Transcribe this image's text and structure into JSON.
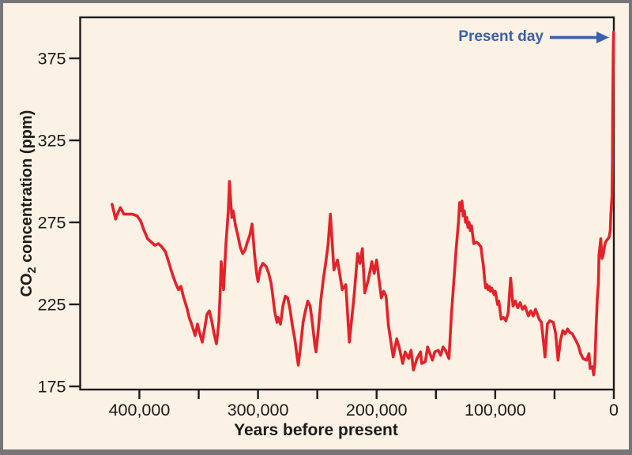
{
  "labels": {
    "y_axis": {
      "prefix": "CO",
      "sub": "2",
      "suffix": " concentration (ppm)"
    },
    "x_axis_title": "Years before present",
    "annotation": "Present day"
  },
  "chart_data": {
    "type": "line",
    "title": "",
    "xlabel": "Years before present",
    "ylabel": "CO2 concentration (ppm)",
    "x_direction": "reversed",
    "xlim_years": [
      450000,
      0
    ],
    "ylim_ppm": [
      175,
      400
    ],
    "grid": false,
    "legend": false,
    "y_ticks_ppm": [
      175,
      225,
      275,
      325,
      375
    ],
    "x_major_ticks": [
      {
        "years": 400000,
        "label": "400,000"
      },
      {
        "years": 300000,
        "label": "300,000"
      },
      {
        "years": 200000,
        "label": "200,000"
      },
      {
        "years": 100000,
        "label": "100,000"
      },
      {
        "years": 0,
        "label": "0"
      }
    ],
    "x_minor_ticks_years": [
      350000,
      250000,
      150000,
      50000
    ],
    "annotation": {
      "text": "Present day",
      "points_to_years": 0,
      "points_to_ppm": 391
    },
    "colors": {
      "background": "#FBF1E4",
      "frame": "#76757A",
      "axis": "#1B1B1B",
      "line": "#E3222A",
      "annotation": "#3A61A9"
    },
    "series": [
      {
        "name": "CO2 concentration",
        "points_years_ppm": [
          [
            423000,
            286
          ],
          [
            420000,
            277
          ],
          [
            418000,
            281
          ],
          [
            416000,
            284
          ],
          [
            413000,
            280
          ],
          [
            410000,
            280
          ],
          [
            406000,
            280
          ],
          [
            402000,
            279
          ],
          [
            399000,
            276
          ],
          [
            396000,
            270
          ],
          [
            393000,
            265
          ],
          [
            390000,
            263
          ],
          [
            387000,
            261
          ],
          [
            384000,
            262
          ],
          [
            381000,
            260
          ],
          [
            378000,
            257
          ],
          [
            375000,
            250
          ],
          [
            372000,
            243
          ],
          [
            369000,
            237
          ],
          [
            367000,
            234
          ],
          [
            365000,
            236
          ],
          [
            363000,
            230
          ],
          [
            360000,
            223
          ],
          [
            358000,
            217
          ],
          [
            356000,
            213
          ],
          [
            353000,
            206
          ],
          [
            351000,
            213
          ],
          [
            349000,
            207
          ],
          [
            347000,
            202
          ],
          [
            345000,
            210
          ],
          [
            343000,
            219
          ],
          [
            341000,
            221
          ],
          [
            339000,
            215
          ],
          [
            337000,
            207
          ],
          [
            335000,
            201
          ],
          [
            333000,
            214
          ],
          [
            332000,
            230
          ],
          [
            331000,
            251
          ],
          [
            330000,
            241
          ],
          [
            329000,
            234
          ],
          [
            328000,
            248
          ],
          [
            327000,
            262
          ],
          [
            325000,
            282
          ],
          [
            324000,
            300
          ],
          [
            323000,
            288
          ],
          [
            322000,
            278
          ],
          [
            321000,
            282
          ],
          [
            319000,
            273
          ],
          [
            317000,
            267
          ],
          [
            315000,
            260
          ],
          [
            313000,
            256
          ],
          [
            311000,
            258
          ],
          [
            309000,
            263
          ],
          [
            307000,
            267
          ],
          [
            305000,
            274
          ],
          [
            303000,
            256
          ],
          [
            301000,
            243
          ],
          [
            300000,
            239
          ],
          [
            298000,
            247
          ],
          [
            296000,
            250
          ],
          [
            293000,
            248
          ],
          [
            291000,
            244
          ],
          [
            289000,
            238
          ],
          [
            288000,
            233
          ],
          [
            286000,
            221
          ],
          [
            284000,
            214
          ],
          [
            283000,
            217
          ],
          [
            281000,
            213
          ],
          [
            279000,
            224
          ],
          [
            277000,
            230
          ],
          [
            275000,
            229
          ],
          [
            273000,
            222
          ],
          [
            271000,
            212
          ],
          [
            269000,
            204
          ],
          [
            267000,
            193
          ],
          [
            266000,
            188
          ],
          [
            264000,
            200
          ],
          [
            262000,
            214
          ],
          [
            260000,
            221
          ],
          [
            258000,
            227
          ],
          [
            256000,
            224
          ],
          [
            254000,
            213
          ],
          [
            252000,
            200
          ],
          [
            251000,
            196
          ],
          [
            249000,
            211
          ],
          [
            247000,
            228
          ],
          [
            245000,
            240
          ],
          [
            243000,
            250
          ],
          [
            241000,
            261
          ],
          [
            239000,
            280
          ],
          [
            236000,
            246
          ],
          [
            233000,
            252
          ],
          [
            229000,
            234
          ],
          [
            226000,
            237
          ],
          [
            223000,
            202
          ],
          [
            219000,
            230
          ],
          [
            216000,
            256
          ],
          [
            214000,
            250
          ],
          [
            212000,
            259
          ],
          [
            210000,
            232
          ],
          [
            207000,
            240
          ],
          [
            204000,
            251
          ],
          [
            202000,
            244
          ],
          [
            200000,
            252
          ],
          [
            196000,
            229
          ],
          [
            194000,
            233
          ],
          [
            192000,
            230
          ],
          [
            190000,
            212
          ],
          [
            186000,
            193
          ],
          [
            183000,
            204
          ],
          [
            181000,
            199
          ],
          [
            178000,
            189
          ],
          [
            176000,
            196
          ],
          [
            173000,
            192
          ],
          [
            171000,
            197
          ],
          [
            169000,
            185
          ],
          [
            166000,
            192
          ],
          [
            163000,
            196
          ],
          [
            162000,
            189
          ],
          [
            159000,
            190
          ],
          [
            157000,
            199
          ],
          [
            153000,
            191
          ],
          [
            151000,
            196
          ],
          [
            148000,
            197
          ],
          [
            146000,
            194
          ],
          [
            144000,
            199
          ],
          [
            142000,
            197
          ],
          [
            139000,
            192
          ],
          [
            137000,
            218
          ],
          [
            135000,
            238
          ],
          [
            133000,
            258
          ],
          [
            131000,
            275
          ],
          [
            130000,
            287
          ],
          [
            129000,
            282
          ],
          [
            128000,
            288
          ],
          [
            127000,
            279
          ],
          [
            126000,
            282
          ],
          [
            125000,
            275
          ],
          [
            124000,
            278
          ],
          [
            123000,
            272
          ],
          [
            122000,
            275
          ],
          [
            121000,
            270
          ],
          [
            120000,
            273
          ],
          [
            118000,
            262
          ],
          [
            116000,
            263
          ],
          [
            114000,
            262
          ],
          [
            112000,
            260
          ],
          [
            111000,
            254
          ],
          [
            110000,
            249
          ],
          [
            109000,
            241
          ],
          [
            108000,
            235
          ],
          [
            107000,
            237
          ],
          [
            106000,
            234
          ],
          [
            105000,
            236
          ],
          [
            104000,
            233
          ],
          [
            103000,
            235
          ],
          [
            101000,
            231
          ],
          [
            100000,
            233
          ],
          [
            98000,
            225
          ],
          [
            97000,
            227
          ],
          [
            95000,
            216
          ],
          [
            93000,
            217
          ],
          [
            91000,
            215
          ],
          [
            89000,
            220
          ],
          [
            88000,
            231
          ],
          [
            87000,
            241
          ],
          [
            85000,
            224
          ],
          [
            83000,
            227
          ],
          [
            81000,
            223
          ],
          [
            79000,
            226
          ],
          [
            77000,
            222
          ],
          [
            75000,
            224
          ],
          [
            72000,
            218
          ],
          [
            70000,
            221
          ],
          [
            68000,
            218
          ],
          [
            66000,
            222
          ],
          [
            63000,
            216
          ],
          [
            61000,
            214
          ],
          [
            58000,
            193
          ],
          [
            56000,
            213
          ],
          [
            54000,
            215
          ],
          [
            51000,
            214
          ],
          [
            49000,
            207
          ],
          [
            47000,
            191
          ],
          [
            45000,
            203
          ],
          [
            43000,
            209
          ],
          [
            41000,
            207
          ],
          [
            39000,
            210
          ],
          [
            37000,
            208
          ],
          [
            35000,
            207
          ],
          [
            32000,
            203
          ],
          [
            30000,
            200
          ],
          [
            28000,
            195
          ],
          [
            26000,
            192
          ],
          [
            23000,
            191
          ],
          [
            21000,
            195
          ],
          [
            20000,
            186
          ],
          [
            18000,
            187
          ],
          [
            17000,
            182
          ],
          [
            16000,
            189
          ],
          [
            15000,
            210
          ],
          [
            14000,
            228
          ],
          [
            13000,
            238
          ],
          [
            12500,
            255
          ],
          [
            11000,
            265
          ],
          [
            10000,
            253
          ],
          [
            9000,
            255
          ],
          [
            8000,
            260
          ],
          [
            7000,
            263
          ],
          [
            6000,
            264
          ],
          [
            5000,
            265
          ],
          [
            4000,
            266
          ],
          [
            3000,
            270
          ],
          [
            2500,
            280
          ],
          [
            1500,
            291
          ],
          [
            1200,
            310
          ],
          [
            900,
            345
          ],
          [
            600,
            372
          ],
          [
            300,
            386
          ],
          [
            100,
            391
          ]
        ]
      }
    ]
  }
}
